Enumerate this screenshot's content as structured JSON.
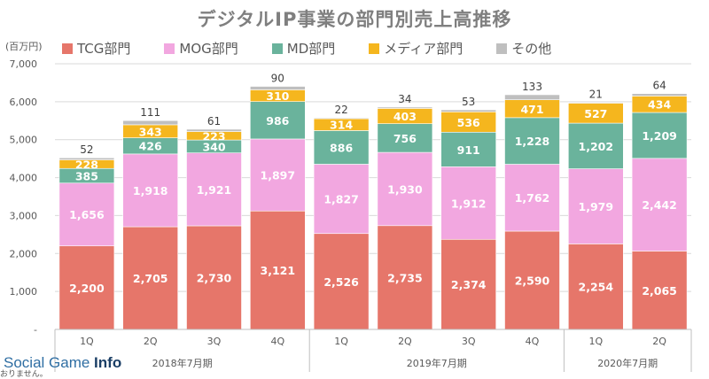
{
  "chart_data": {
    "type": "bar",
    "stacked": true,
    "title": "デジタルIP事業の部門別売上高推移",
    "unit_label": "(百万円)",
    "ylim": [
      0,
      7000
    ],
    "y_ticks": [
      "-",
      "1,000",
      "2,000",
      "3,000",
      "4,000",
      "5,000",
      "6,000",
      "7,000"
    ],
    "grid": true,
    "legend_position": "top",
    "categories": [
      "1Q",
      "2Q",
      "3Q",
      "4Q",
      "1Q",
      "2Q",
      "3Q",
      "4Q",
      "1Q",
      "2Q"
    ],
    "groups": [
      {
        "label": "2018年7月期",
        "count": 4
      },
      {
        "label": "2019年7月期",
        "count": 4
      },
      {
        "label": "2020年7月期",
        "count": 2
      }
    ],
    "series": [
      {
        "name": "TCG部門",
        "color": "#e6766a",
        "values": [
          2200,
          2705,
          2730,
          3121,
          2526,
          2735,
          2374,
          2590,
          2254,
          2065
        ],
        "labels": [
          "2,200",
          "2,705",
          "2,730",
          "3,121",
          "2,526",
          "2,735",
          "2,374",
          "2,590",
          "2,254",
          "2,065"
        ]
      },
      {
        "name": "MOG部門",
        "color": "#f2a7e0",
        "values": [
          1656,
          1918,
          1921,
          1897,
          1827,
          1930,
          1912,
          1762,
          1979,
          2442
        ],
        "labels": [
          "1,656",
          "1,918",
          "1,921",
          "1,897",
          "1,827",
          "1,930",
          "1,912",
          "1,762",
          "1,979",
          "2,442"
        ]
      },
      {
        "name": "MD部門",
        "color": "#6ab39c",
        "values": [
          385,
          426,
          340,
          986,
          886,
          756,
          911,
          1228,
          1202,
          1209
        ],
        "labels": [
          "385",
          "426",
          "340",
          "986",
          "886",
          "756",
          "911",
          "1,228",
          "1,202",
          "1,209"
        ]
      },
      {
        "name": "メディア部門",
        "color": "#f5b61e",
        "values": [
          228,
          343,
          223,
          310,
          314,
          403,
          536,
          471,
          527,
          434
        ],
        "labels": [
          "228",
          "343",
          "223",
          "310",
          "314",
          "403",
          "536",
          "471",
          "527",
          "434"
        ]
      },
      {
        "name": "その他",
        "color": "#bfbfbf",
        "values": [
          52,
          111,
          61,
          90,
          22,
          34,
          53,
          133,
          21,
          64
        ],
        "labels": [
          "52",
          "111",
          "61",
          "90",
          "22",
          "34",
          "53",
          "133",
          "21",
          "64"
        ]
      }
    ]
  },
  "watermark": {
    "text_a": "Social Game ",
    "text_b": "Info"
  },
  "footnote": "おりません。"
}
